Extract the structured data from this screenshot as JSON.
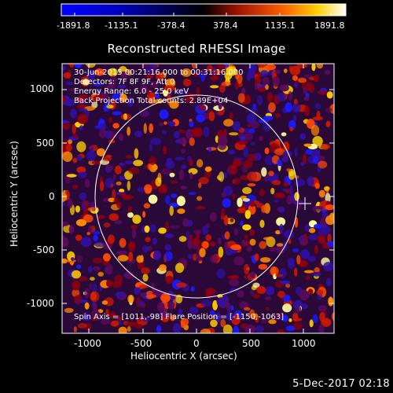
{
  "colorbar": {
    "ticks": [
      "-1891.8",
      "-1135.1",
      "-378.4",
      "378.4",
      "1135.1",
      "1891.8"
    ]
  },
  "plot": {
    "title": "Reconstructed RHESSI Image",
    "info_lines": [
      "30-Jun-2015 00:21:16.000 to 00:31:16.000",
      "Detectors: 7F 8F 9F, Att 0",
      "Energy Range: 6.0 - 25.0 keV",
      "Back Projection    Total counts: 2.89E+04"
    ],
    "footer": "Spin Axis = [1011,-98]  Flare Position = [-1150,-1063]",
    "xlabel": "Heliocentric X (arcsec)",
    "ylabel": "Heliocentric Y (arcsec)",
    "xticks": [
      "-1000",
      "-500",
      "0",
      "500",
      "1000"
    ],
    "yticks": [
      "1000",
      "500",
      "0",
      "-500",
      "-1000"
    ],
    "colors": {
      "background": "#000000",
      "frame": "#ffffff",
      "colormap": [
        "#0000ff",
        "#000000",
        "#ff0000",
        "#ffff00",
        "#ffffff"
      ]
    }
  },
  "timestamp": "5-Dec-2017 02:18"
}
